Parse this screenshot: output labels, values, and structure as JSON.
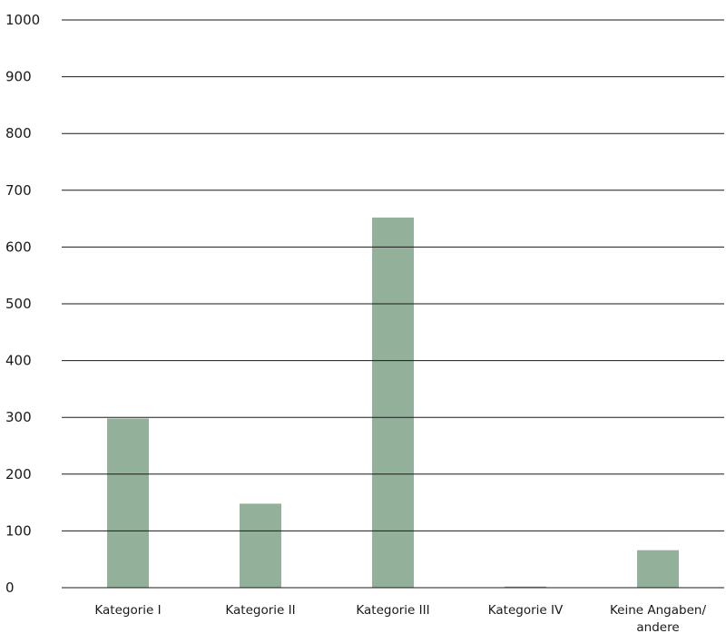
{
  "chart_data": {
    "type": "bar",
    "title": "",
    "xlabel": "",
    "ylabel": "",
    "categories": [
      [
        "Kategorie I"
      ],
      [
        "Kategorie II"
      ],
      [
        "Kategorie III"
      ],
      [
        "Kategorie IV"
      ],
      [
        "Keine Angaben/",
        "andere"
      ]
    ],
    "values": [
      298,
      148,
      652,
      2,
      66
    ],
    "ylim": [
      0,
      1000
    ],
    "yticks": [
      "0",
      "100",
      "200",
      "300",
      "400",
      "500",
      "600",
      "700",
      "800",
      "900",
      "1000"
    ],
    "grid": true,
    "legend": "none",
    "bar_color": "#93b09b"
  }
}
